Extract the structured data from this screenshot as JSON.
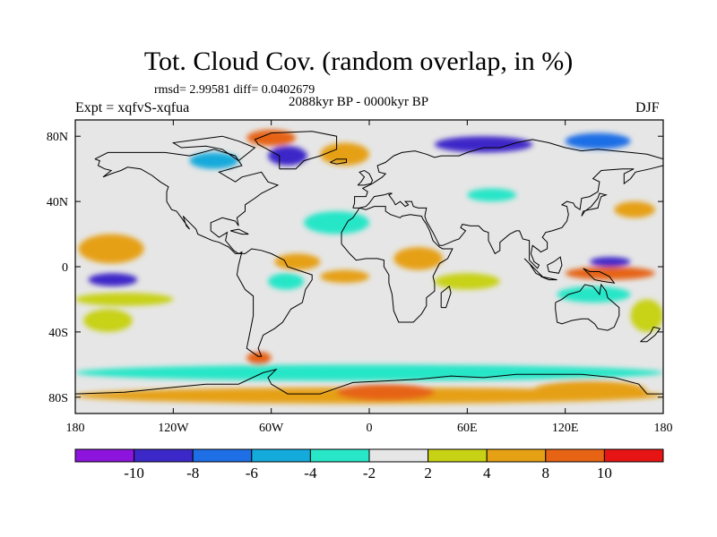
{
  "title": "Tot. Cloud Cov. (random overlap, in %)",
  "stats": "rmsd= 2.99581 diff= 0.0402679",
  "experiment": "Expt = xqfvS-xqfua",
  "period": "2088kyr BP - 0000kyr BP",
  "season": "DJF",
  "chart_data": {
    "type": "heatmap",
    "projection": "cylindrical equidistant",
    "xlim": [
      -180,
      180
    ],
    "ylim": [
      -90,
      90
    ],
    "x_ticks": [
      {
        "value": -180,
        "label": "180"
      },
      {
        "value": -120,
        "label": "120W"
      },
      {
        "value": -60,
        "label": "60W"
      },
      {
        "value": 0,
        "label": "0"
      },
      {
        "value": 60,
        "label": "60E"
      },
      {
        "value": 120,
        "label": "120E"
      },
      {
        "value": 180,
        "label": "180"
      }
    ],
    "y_ticks": [
      {
        "value": 80,
        "label": "80N"
      },
      {
        "value": 40,
        "label": "40N"
      },
      {
        "value": 0,
        "label": "0"
      },
      {
        "value": -40,
        "label": "40S"
      },
      {
        "value": -80,
        "label": "80S"
      }
    ],
    "colorbar": {
      "levels": [
        -10,
        -8,
        -6,
        -4,
        -2,
        2,
        4,
        8,
        10
      ],
      "labels": [
        "-10",
        "-8",
        "-6",
        "-4",
        "-2",
        "2",
        "4",
        "8",
        "10"
      ],
      "colors": [
        "#8c14dc",
        "#3c28c8",
        "#1e6ee6",
        "#14aadc",
        "#28e6c8",
        "#e6e6e6",
        "#c8d214",
        "#e6a014",
        "#e66414",
        "#e61414"
      ]
    },
    "anomaly_regions": [
      {
        "lon": [
          -178,
          -138
        ],
        "lat": [
          2,
          20
        ],
        "value": 4
      },
      {
        "lon": [
          -172,
          -142
        ],
        "lat": [
          -12,
          -4
        ],
        "value": -10
      },
      {
        "lon": [
          -180,
          -120
        ],
        "lat": [
          -24,
          -16
        ],
        "value": 2
      },
      {
        "lon": [
          -175,
          -145
        ],
        "lat": [
          -40,
          -26
        ],
        "value": 2
      },
      {
        "lon": [
          -58,
          -30
        ],
        "lat": [
          -2,
          8
        ],
        "value": 4
      },
      {
        "lon": [
          -62,
          -40
        ],
        "lat": [
          -14,
          -4
        ],
        "value": -4
      },
      {
        "lon": [
          -30,
          0
        ],
        "lat": [
          -10,
          -2
        ],
        "value": 4
      },
      {
        "lon": [
          15,
          45
        ],
        "lat": [
          -2,
          12
        ],
        "value": 4
      },
      {
        "lon": [
          40,
          80
        ],
        "lat": [
          -14,
          -4
        ],
        "value": 2
      },
      {
        "lon": [
          -140,
          -110
        ],
        "lat": [
          -40,
          -32
        ],
        "value": -2
      },
      {
        "lon": [
          -90,
          -60
        ],
        "lat": [
          -50,
          -40
        ],
        "value": -2
      },
      {
        "lon": [
          30,
          60
        ],
        "lat": [
          -35,
          -22
        ],
        "value": -2
      },
      {
        "lon": [
          135,
          160
        ],
        "lat": [
          0,
          6
        ],
        "value": -10
      },
      {
        "lon": [
          120,
          175
        ],
        "lat": [
          -8,
          0
        ],
        "value": 8
      },
      {
        "lon": [
          115,
          160
        ],
        "lat": [
          -22,
          -12
        ],
        "value": -4
      },
      {
        "lon": [
          160,
          180
        ],
        "lat": [
          -40,
          -20
        ],
        "value": 2
      },
      {
        "lon": [
          -75,
          -45
        ],
        "lat": [
          74,
          84
        ],
        "value": 8
      },
      {
        "lon": [
          -62,
          -38
        ],
        "lat": [
          62,
          74
        ],
        "value": -10
      },
      {
        "lon": [
          -110,
          -80
        ],
        "lat": [
          60,
          70
        ],
        "value": -6
      },
      {
        "lon": [
          -30,
          0
        ],
        "lat": [
          62,
          76
        ],
        "value": 4
      },
      {
        "lon": [
          40,
          100
        ],
        "lat": [
          70,
          80
        ],
        "value": -10
      },
      {
        "lon": [
          120,
          160
        ],
        "lat": [
          72,
          82
        ],
        "value": -8
      },
      {
        "lon": [
          -40,
          0
        ],
        "lat": [
          20,
          34
        ],
        "value": -4
      },
      {
        "lon": [
          60,
          90
        ],
        "lat": [
          40,
          48
        ],
        "value": -4
      },
      {
        "lon": [
          150,
          175
        ],
        "lat": [
          30,
          40
        ],
        "value": 4
      },
      {
        "lon": [
          -180,
          180
        ],
        "lat": [
          -70,
          -60
        ],
        "value": -4
      },
      {
        "lon": [
          -180,
          180
        ],
        "lat": [
          -84,
          -74
        ],
        "value": 4
      },
      {
        "lon": [
          -75,
          -60
        ],
        "lat": [
          -60,
          -52
        ],
        "value": 8
      },
      {
        "lon": [
          -20,
          40
        ],
        "lat": [
          -82,
          -72
        ],
        "value": 8
      },
      {
        "lon": [
          100,
          170
        ],
        "lat": [
          -82,
          -70
        ],
        "value": 4
      }
    ]
  }
}
